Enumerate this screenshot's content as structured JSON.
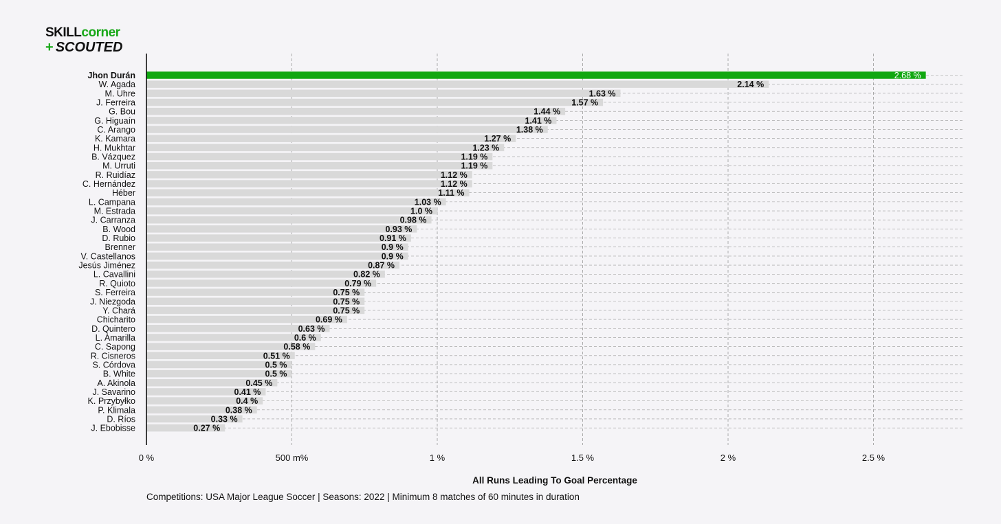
{
  "logo": {
    "line1_part1": "SKILL",
    "line1_part2": "corner",
    "line2_plus": "+",
    "line2_text": "SCOUTED"
  },
  "colors": {
    "highlight": "#11a711",
    "bar": "#d9d9d9",
    "grid": "#9a9a9a",
    "background": "#f5f4f7"
  },
  "chart_data": {
    "type": "bar",
    "orientation": "horizontal",
    "xlabel": "All Runs Leading To Goal Percentage",
    "xlim": [
      0,
      2.8
    ],
    "x_ticks": [
      {
        "value": 0,
        "label": "0 %"
      },
      {
        "value": 0.5,
        "label": "500 m%"
      },
      {
        "value": 1,
        "label": "1 %"
      },
      {
        "value": 1.5,
        "label": "1.5 %"
      },
      {
        "value": 2,
        "label": "2 %"
      },
      {
        "value": 2.5,
        "label": "2.5 %"
      }
    ],
    "grid": true,
    "highlight_index": 0,
    "categories": [
      "Jhon Durán",
      "W. Agada",
      "M. Uhre",
      "J. Ferreira",
      "G. Bou",
      "G. Higuaín",
      "C. Arango",
      "K. Kamara",
      "H. Mukhtar",
      "B. Vázquez",
      "M. Urruti",
      "R. Ruidíaz",
      "C. Hernández",
      "Héber",
      "L. Campana",
      "M. Estrada",
      "J. Carranza",
      "B. Wood",
      "D. Rubio",
      "Brenner",
      "V. Castellanos",
      "Jesús Jiménez",
      "L. Cavallini",
      "R. Quioto",
      "S. Ferreira",
      "J. Niezgoda",
      "Y. Chará",
      "Chicharito",
      "D. Quintero",
      "L. Amarilla",
      "C. Sapong",
      "R. Cisneros",
      "S. Córdova",
      "B. White",
      "A. Akinola",
      "J. Savarino",
      "K. Przybyłko",
      "P. Klimala",
      "D. Ríos",
      "J. Ebobisse"
    ],
    "values": [
      2.68,
      2.14,
      1.63,
      1.57,
      1.44,
      1.41,
      1.38,
      1.27,
      1.23,
      1.19,
      1.19,
      1.12,
      1.12,
      1.11,
      1.03,
      1.0,
      0.98,
      0.93,
      0.91,
      0.9,
      0.9,
      0.87,
      0.82,
      0.79,
      0.75,
      0.75,
      0.75,
      0.69,
      0.63,
      0.6,
      0.58,
      0.51,
      0.5,
      0.5,
      0.45,
      0.41,
      0.4,
      0.38,
      0.33,
      0.27
    ],
    "value_labels": [
      "2.68 %",
      "2.14 %",
      "1.63 %",
      "1.57 %",
      "1.44 %",
      "1.41 %",
      "1.38 %",
      "1.27 %",
      "1.23 %",
      "1.19 %",
      "1.19 %",
      "1.12 %",
      "1.12 %",
      "1.11 %",
      "1.03 %",
      "1.0 %",
      "0.98 %",
      "0.93 %",
      "0.91 %",
      "0.9 %",
      "0.9 %",
      "0.87 %",
      "0.82 %",
      "0.79 %",
      "0.75 %",
      "0.75 %",
      "0.75 %",
      "0.69 %",
      "0.63 %",
      "0.6 %",
      "0.58 %",
      "0.51 %",
      "0.5 %",
      "0.5 %",
      "0.45 %",
      "0.41 %",
      "0.4 %",
      "0.38 %",
      "0.33 %",
      "0.27 %"
    ]
  },
  "footer": {
    "caption": "Competitions: USA Major League Soccer | Seasons: 2022 | Minimum 8 matches of 60 minutes in duration"
  }
}
